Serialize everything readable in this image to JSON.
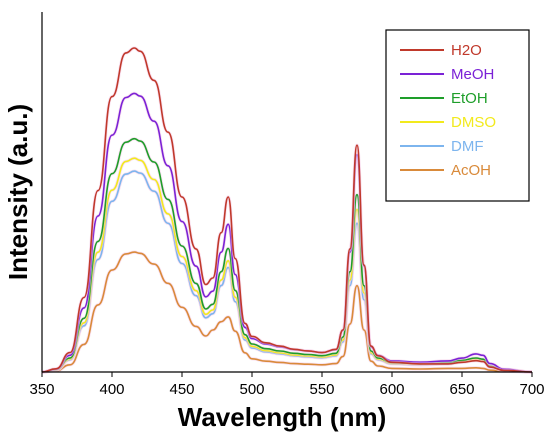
{
  "chart_data": {
    "type": "line",
    "title": "",
    "xlabel": "Wavelength (nm)",
    "ylabel": "Intensity (a.u.)",
    "xlim": [
      350,
      700
    ],
    "ylim": [
      0,
      1.0
    ],
    "xticks": [
      350,
      400,
      450,
      500,
      550,
      600,
      650,
      700
    ],
    "yticks_shown": false,
    "grid": false,
    "legend_position": "top-right",
    "series": [
      {
        "name": "H2O",
        "color": "#c0392b",
        "scale": 1.0
      },
      {
        "name": "MeOH",
        "color": "#7b22d6",
        "scale": 0.86
      },
      {
        "name": "EtOH",
        "color": "#1e9e2a",
        "scale": 0.72
      },
      {
        "name": "DMSO",
        "color": "#f2ea1d",
        "scale": 0.66
      },
      {
        "name": "DMF",
        "color": "#7db5ee",
        "scale": 0.62
      },
      {
        "name": "AcOH",
        "color": "#d98a3a",
        "scale": 0.37
      }
    ],
    "peaks": {
      "x": [
        350,
        360,
        370,
        380,
        390,
        400,
        410,
        416,
        420,
        430,
        440,
        450,
        460,
        467,
        472,
        478,
        483,
        488,
        495,
        500,
        510,
        520,
        530,
        540,
        550,
        560,
        565,
        570,
        575,
        580,
        585,
        590,
        600,
        620,
        640,
        650,
        660,
        665,
        670,
        680,
        700
      ],
      "y_series": [
        [
          0.0,
          0.01,
          0.06,
          0.23,
          0.56,
          0.85,
          0.985,
          1.0,
          0.99,
          0.9,
          0.74,
          0.54,
          0.38,
          0.27,
          0.29,
          0.43,
          0.54,
          0.35,
          0.15,
          0.11,
          0.09,
          0.08,
          0.07,
          0.065,
          0.06,
          0.07,
          0.13,
          0.38,
          0.7,
          0.33,
          0.08,
          0.05,
          0.03,
          0.025,
          0.025,
          0.03,
          0.035,
          0.032,
          0.015,
          0.005,
          0.0
        ],
        [
          0.0,
          0.01,
          0.06,
          0.23,
          0.56,
          0.85,
          0.985,
          1.0,
          0.99,
          0.9,
          0.74,
          0.54,
          0.38,
          0.27,
          0.29,
          0.43,
          0.53,
          0.35,
          0.16,
          0.12,
          0.1,
          0.09,
          0.08,
          0.075,
          0.07,
          0.08,
          0.15,
          0.43,
          0.78,
          0.38,
          0.09,
          0.06,
          0.04,
          0.035,
          0.04,
          0.05,
          0.065,
          0.06,
          0.03,
          0.01,
          0.0
        ],
        [
          0.0,
          0.01,
          0.06,
          0.23,
          0.56,
          0.85,
          0.985,
          1.0,
          0.99,
          0.9,
          0.74,
          0.54,
          0.38,
          0.27,
          0.29,
          0.43,
          0.53,
          0.35,
          0.16,
          0.12,
          0.1,
          0.09,
          0.08,
          0.075,
          0.07,
          0.08,
          0.15,
          0.43,
          0.76,
          0.37,
          0.09,
          0.06,
          0.04,
          0.035,
          0.04,
          0.05,
          0.06,
          0.055,
          0.025,
          0.01,
          0.0
        ],
        [
          0.0,
          0.01,
          0.06,
          0.23,
          0.56,
          0.85,
          0.985,
          1.0,
          0.99,
          0.9,
          0.74,
          0.54,
          0.38,
          0.27,
          0.29,
          0.43,
          0.52,
          0.35,
          0.16,
          0.12,
          0.1,
          0.09,
          0.08,
          0.075,
          0.07,
          0.08,
          0.15,
          0.43,
          0.76,
          0.37,
          0.09,
          0.06,
          0.04,
          0.035,
          0.04,
          0.05,
          0.06,
          0.055,
          0.025,
          0.01,
          0.0
        ],
        [
          0.0,
          0.01,
          0.06,
          0.23,
          0.56,
          0.85,
          0.985,
          1.0,
          0.99,
          0.9,
          0.74,
          0.54,
          0.38,
          0.27,
          0.29,
          0.43,
          0.52,
          0.35,
          0.16,
          0.12,
          0.1,
          0.09,
          0.08,
          0.075,
          0.07,
          0.08,
          0.15,
          0.43,
          0.74,
          0.36,
          0.09,
          0.06,
          0.04,
          0.035,
          0.04,
          0.05,
          0.06,
          0.055,
          0.025,
          0.01,
          0.0
        ],
        [
          0.0,
          0.01,
          0.06,
          0.23,
          0.56,
          0.85,
          0.985,
          1.0,
          0.99,
          0.9,
          0.74,
          0.54,
          0.38,
          0.3,
          0.35,
          0.42,
          0.46,
          0.34,
          0.16,
          0.11,
          0.09,
          0.08,
          0.07,
          0.065,
          0.06,
          0.07,
          0.13,
          0.4,
          0.72,
          0.35,
          0.09,
          0.05,
          0.03,
          0.025,
          0.03,
          0.03,
          0.035,
          0.03,
          0.015,
          0.005,
          0.0
        ]
      ]
    }
  }
}
